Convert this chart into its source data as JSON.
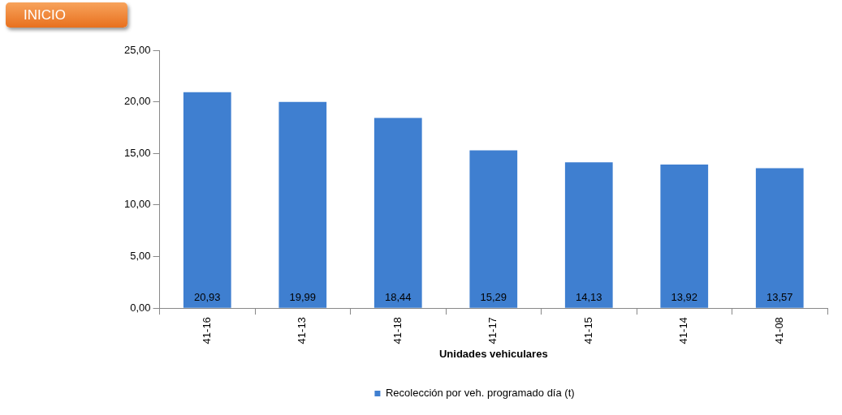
{
  "chart_data": {
    "type": "bar",
    "categories": [
      "41-16",
      "41-13",
      "41-18",
      "41-17",
      "41-15",
      "41-14",
      "41-08"
    ],
    "series": [
      {
        "name": "Recolección por veh. programado día (t)",
        "color": "#3f7fd0",
        "values": [
          20.93,
          19.99,
          18.44,
          15.29,
          14.13,
          13.92,
          13.57
        ],
        "value_labels": [
          "20,93",
          "19,99",
          "18,44",
          "15,29",
          "14,13",
          "13,92",
          "13,57"
        ]
      }
    ],
    "xlabel": "Unidades vehiculares",
    "ylim": [
      0,
      25
    ],
    "yticks": [
      {
        "value": 0,
        "label": "0,00"
      },
      {
        "value": 5,
        "label": "5,00"
      },
      {
        "value": 10,
        "label": "10,00"
      },
      {
        "value": 15,
        "label": "15,00"
      },
      {
        "value": 20,
        "label": "20,00"
      },
      {
        "value": 25,
        "label": "25,00"
      }
    ],
    "legend": "bottom",
    "annotations": [
      "INICIO"
    ]
  }
}
